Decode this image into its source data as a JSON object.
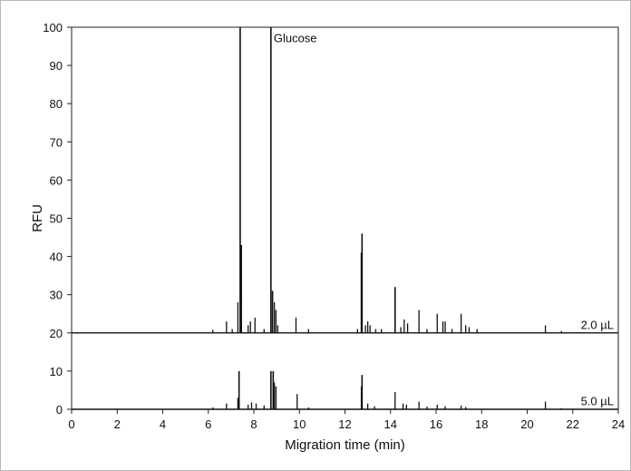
{
  "chart_data": {
    "type": "line",
    "title": "",
    "xlabel": "Migration time (min)",
    "ylabel": "RFU",
    "xlim": [
      0,
      24
    ],
    "ylim": [
      0,
      100
    ],
    "x_ticks": [
      0,
      2,
      4,
      6,
      8,
      10,
      12,
      14,
      16,
      18,
      20,
      22,
      24
    ],
    "y_ticks": [
      0,
      10,
      20,
      30,
      40,
      50,
      60,
      70,
      80,
      90,
      100
    ],
    "grid": false,
    "legend": "none",
    "line_color": "#111111",
    "annotations": [
      {
        "text": "Glucose",
        "x": 8.75,
        "y": 97
      },
      {
        "text": "2.0 µL",
        "x": 23.8,
        "y": 22
      },
      {
        "text": "5.0 µL",
        "x": 23.8,
        "y": 2
      }
    ],
    "series": [
      {
        "name": "2.0 µL",
        "baseline": 20,
        "peaks": [
          [
            6.2,
            20.8
          ],
          [
            6.8,
            23.0
          ],
          [
            7.05,
            21.0
          ],
          [
            7.3,
            28.0
          ],
          [
            7.4,
            100
          ],
          [
            7.45,
            43.0
          ],
          [
            7.75,
            22.0
          ],
          [
            7.85,
            23.0
          ],
          [
            8.05,
            24.0
          ],
          [
            8.45,
            21.0
          ],
          [
            8.75,
            100
          ],
          [
            8.82,
            31.0
          ],
          [
            8.9,
            28.0
          ],
          [
            8.97,
            26.0
          ],
          [
            9.05,
            22.0
          ],
          [
            9.85,
            24.0
          ],
          [
            10.4,
            21.0
          ],
          [
            12.55,
            21.0
          ],
          [
            12.72,
            41.0
          ],
          [
            12.75,
            46.0
          ],
          [
            12.9,
            22.0
          ],
          [
            13.0,
            23.0
          ],
          [
            13.1,
            22.0
          ],
          [
            13.35,
            21.0
          ],
          [
            13.6,
            21.0
          ],
          [
            14.2,
            32.0
          ],
          [
            14.45,
            21.5
          ],
          [
            14.6,
            23.5
          ],
          [
            14.75,
            22.5
          ],
          [
            15.25,
            26.0
          ],
          [
            15.6,
            21.0
          ],
          [
            16.05,
            25.0
          ],
          [
            16.3,
            23.0
          ],
          [
            16.4,
            23.0
          ],
          [
            16.7,
            21.0
          ],
          [
            17.1,
            25.0
          ],
          [
            17.3,
            22.0
          ],
          [
            17.45,
            21.5
          ],
          [
            17.8,
            21.0
          ],
          [
            20.8,
            22.0
          ],
          [
            21.5,
            20.5
          ]
        ]
      },
      {
        "name": "5.0 µL",
        "baseline": 0,
        "peaks": [
          [
            6.2,
            0.5
          ],
          [
            6.8,
            1.5
          ],
          [
            7.3,
            3.0
          ],
          [
            7.35,
            10.0
          ],
          [
            7.75,
            1.2
          ],
          [
            7.9,
            1.8
          ],
          [
            8.1,
            1.5
          ],
          [
            8.45,
            1.0
          ],
          [
            8.75,
            10.0
          ],
          [
            8.85,
            10.0
          ],
          [
            8.9,
            7.0
          ],
          [
            8.97,
            6.0
          ],
          [
            9.9,
            4.0
          ],
          [
            10.4,
            0.5
          ],
          [
            12.72,
            6.0
          ],
          [
            12.75,
            9.0
          ],
          [
            13.0,
            1.5
          ],
          [
            13.3,
            0.8
          ],
          [
            14.2,
            4.5
          ],
          [
            14.55,
            1.5
          ],
          [
            14.7,
            1.2
          ],
          [
            15.25,
            2.0
          ],
          [
            15.6,
            0.7
          ],
          [
            16.05,
            1.2
          ],
          [
            16.4,
            0.8
          ],
          [
            17.1,
            1.0
          ],
          [
            17.3,
            0.6
          ],
          [
            20.8,
            2.0
          ],
          [
            21.5,
            0.3
          ]
        ]
      }
    ]
  }
}
